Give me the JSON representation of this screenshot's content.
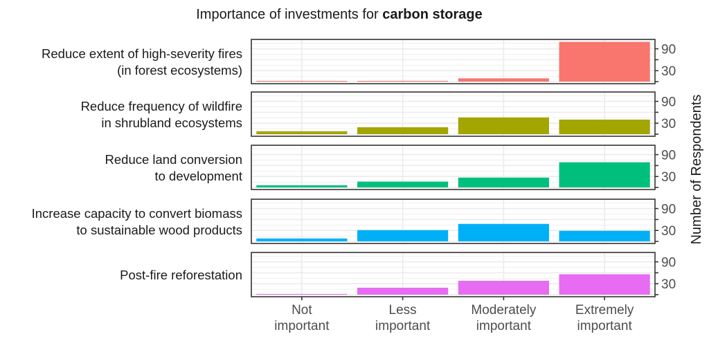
{
  "chart_data": {
    "type": "bar",
    "title_prefix": "Importance of investments for ",
    "title_bold": "carbon storage",
    "ylabel": "Number of Respondents",
    "xlabel": "",
    "categories": [
      [
        "Not",
        "important"
      ],
      [
        "Less",
        "important"
      ],
      [
        "Moderately",
        "important"
      ],
      [
        "Extremely",
        "important"
      ]
    ],
    "y_ticks": [
      30,
      90
    ],
    "ylim": [
      0,
      110
    ],
    "grid": true,
    "series": [
      {
        "name": [
          "Reduce extent of high-severity fires",
          "(in forest ecosystems)"
        ],
        "color": "#F8766D",
        "values": [
          2,
          2,
          9,
          109
        ]
      },
      {
        "name": [
          "Reduce frequency of wildfire",
          "in shrubland ecosystems"
        ],
        "color": "#A3A500",
        "values": [
          8,
          19,
          46,
          40
        ]
      },
      {
        "name": [
          "Reduce land conversion",
          "to development"
        ],
        "color": "#00BF7D",
        "values": [
          6,
          16,
          27,
          69
        ]
      },
      {
        "name": [
          "Increase capacity to convert biomass",
          "to sustainable wood products"
        ],
        "color": "#00B0F6",
        "values": [
          8,
          31,
          48,
          29
        ]
      },
      {
        "name": [
          "Post-fire reforestation"
        ],
        "color": "#E76BF3",
        "values": [
          2,
          19,
          38,
          56
        ]
      }
    ]
  }
}
